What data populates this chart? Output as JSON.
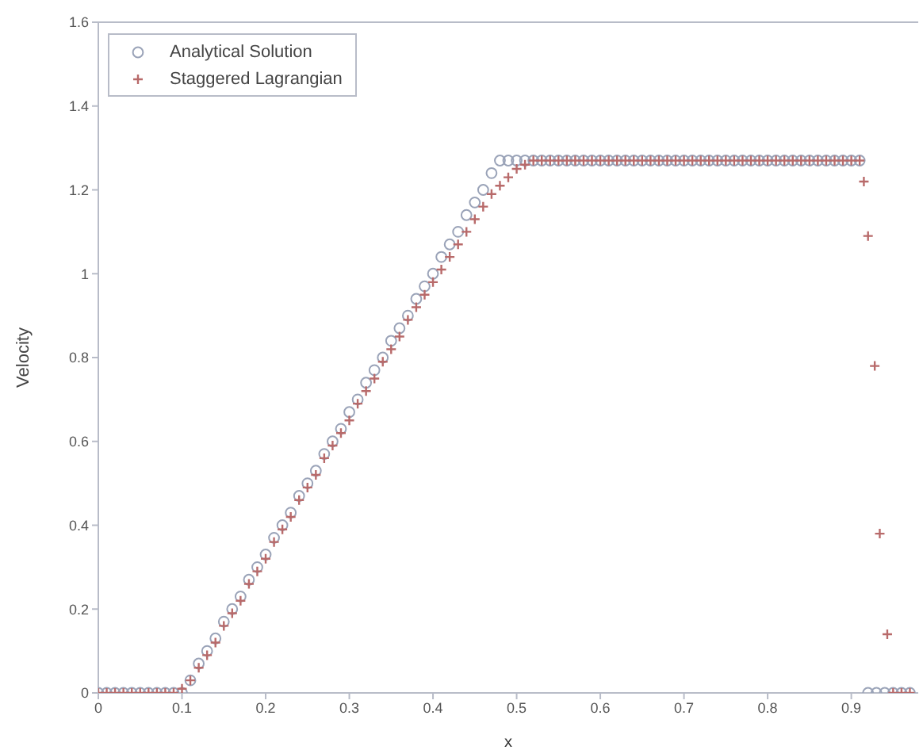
{
  "chart_data": {
    "type": "scatter",
    "xlabel": "x",
    "ylabel": "Velocity",
    "xlim": [
      0,
      0.98
    ],
    "ylim": [
      0,
      1.6
    ],
    "xticks": [
      0,
      0.1,
      0.2,
      0.3,
      0.4,
      0.5,
      0.6,
      0.7,
      0.8,
      0.9
    ],
    "yticks": [
      0,
      0.2,
      0.4,
      0.6,
      0.8,
      1,
      1.2,
      1.4,
      1.6
    ],
    "grid": false,
    "legend": "top left",
    "series": [
      {
        "name": "Analytical Solution",
        "color": "#9aa3b8",
        "marker": "circle",
        "x": [
          0,
          0.01,
          0.02,
          0.03,
          0.04,
          0.05,
          0.06,
          0.07,
          0.08,
          0.09,
          0.1,
          0.11,
          0.12,
          0.13,
          0.14,
          0.15,
          0.16,
          0.17,
          0.18,
          0.19,
          0.2,
          0.21,
          0.22,
          0.23,
          0.24,
          0.25,
          0.26,
          0.27,
          0.28,
          0.29,
          0.3,
          0.31,
          0.32,
          0.33,
          0.34,
          0.35,
          0.36,
          0.37,
          0.38,
          0.39,
          0.4,
          0.41,
          0.42,
          0.43,
          0.44,
          0.45,
          0.46,
          0.47,
          0.48,
          0.49,
          0.5,
          0.51,
          0.52,
          0.53,
          0.54,
          0.55,
          0.56,
          0.57,
          0.58,
          0.59,
          0.6,
          0.61,
          0.62,
          0.63,
          0.64,
          0.65,
          0.66,
          0.67,
          0.68,
          0.69,
          0.7,
          0.71,
          0.72,
          0.73,
          0.74,
          0.75,
          0.76,
          0.77,
          0.78,
          0.79,
          0.8,
          0.81,
          0.82,
          0.83,
          0.84,
          0.85,
          0.86,
          0.87,
          0.88,
          0.89,
          0.9,
          0.91,
          0.92,
          0.93,
          0.94,
          0.95,
          0.96,
          0.97
        ],
        "values": [
          0,
          0,
          0,
          0,
          0,
          0,
          0,
          0,
          0,
          0,
          0,
          0.03,
          0.07,
          0.1,
          0.13,
          0.17,
          0.2,
          0.23,
          0.27,
          0.3,
          0.33,
          0.37,
          0.4,
          0.43,
          0.47,
          0.5,
          0.53,
          0.57,
          0.6,
          0.63,
          0.67,
          0.7,
          0.74,
          0.77,
          0.8,
          0.84,
          0.87,
          0.9,
          0.94,
          0.97,
          1,
          1.04,
          1.07,
          1.1,
          1.14,
          1.17,
          1.2,
          1.24,
          1.27,
          1.27,
          1.27,
          1.27,
          1.27,
          1.27,
          1.27,
          1.27,
          1.27,
          1.27,
          1.27,
          1.27,
          1.27,
          1.27,
          1.27,
          1.27,
          1.27,
          1.27,
          1.27,
          1.27,
          1.27,
          1.27,
          1.27,
          1.27,
          1.27,
          1.27,
          1.27,
          1.27,
          1.27,
          1.27,
          1.27,
          1.27,
          1.27,
          1.27,
          1.27,
          1.27,
          1.27,
          1.27,
          1.27,
          1.27,
          1.27,
          1.27,
          1.27,
          1.27,
          0,
          0,
          0,
          0,
          0,
          0
        ]
      },
      {
        "name": "Staggered Lagrangian",
        "color": "#b86a6a",
        "marker": "cross",
        "x": [
          0,
          0.01,
          0.02,
          0.03,
          0.04,
          0.05,
          0.06,
          0.07,
          0.08,
          0.09,
          0.1,
          0.11,
          0.12,
          0.13,
          0.14,
          0.15,
          0.16,
          0.17,
          0.18,
          0.19,
          0.2,
          0.21,
          0.22,
          0.23,
          0.24,
          0.25,
          0.26,
          0.27,
          0.28,
          0.29,
          0.3,
          0.31,
          0.32,
          0.33,
          0.34,
          0.35,
          0.36,
          0.37,
          0.38,
          0.39,
          0.4,
          0.41,
          0.42,
          0.43,
          0.44,
          0.45,
          0.46,
          0.47,
          0.48,
          0.49,
          0.5,
          0.51,
          0.52,
          0.53,
          0.54,
          0.55,
          0.56,
          0.57,
          0.58,
          0.59,
          0.6,
          0.61,
          0.62,
          0.63,
          0.64,
          0.65,
          0.66,
          0.67,
          0.68,
          0.69,
          0.7,
          0.71,
          0.72,
          0.73,
          0.74,
          0.75,
          0.76,
          0.77,
          0.78,
          0.79,
          0.8,
          0.81,
          0.82,
          0.83,
          0.84,
          0.85,
          0.86,
          0.87,
          0.88,
          0.89,
          0.9,
          0.91,
          0.915,
          0.92,
          0.928,
          0.934,
          0.943,
          0.95,
          0.96,
          0.97
        ],
        "values": [
          0,
          0,
          0,
          0,
          0,
          0,
          0,
          0,
          0,
          0,
          0.01,
          0.03,
          0.06,
          0.09,
          0.12,
          0.16,
          0.19,
          0.22,
          0.26,
          0.29,
          0.32,
          0.36,
          0.39,
          0.42,
          0.46,
          0.49,
          0.52,
          0.56,
          0.59,
          0.62,
          0.65,
          0.69,
          0.72,
          0.75,
          0.79,
          0.82,
          0.85,
          0.89,
          0.92,
          0.95,
          0.98,
          1.01,
          1.04,
          1.07,
          1.1,
          1.13,
          1.16,
          1.19,
          1.21,
          1.23,
          1.25,
          1.26,
          1.27,
          1.27,
          1.27,
          1.27,
          1.27,
          1.27,
          1.27,
          1.27,
          1.27,
          1.27,
          1.27,
          1.27,
          1.27,
          1.27,
          1.27,
          1.27,
          1.27,
          1.27,
          1.27,
          1.27,
          1.27,
          1.27,
          1.27,
          1.27,
          1.27,
          1.27,
          1.27,
          1.27,
          1.27,
          1.27,
          1.27,
          1.27,
          1.27,
          1.27,
          1.27,
          1.27,
          1.27,
          1.27,
          1.27,
          1.27,
          1.22,
          1.09,
          0.78,
          0.38,
          0.14,
          0,
          0,
          0
        ]
      }
    ]
  }
}
